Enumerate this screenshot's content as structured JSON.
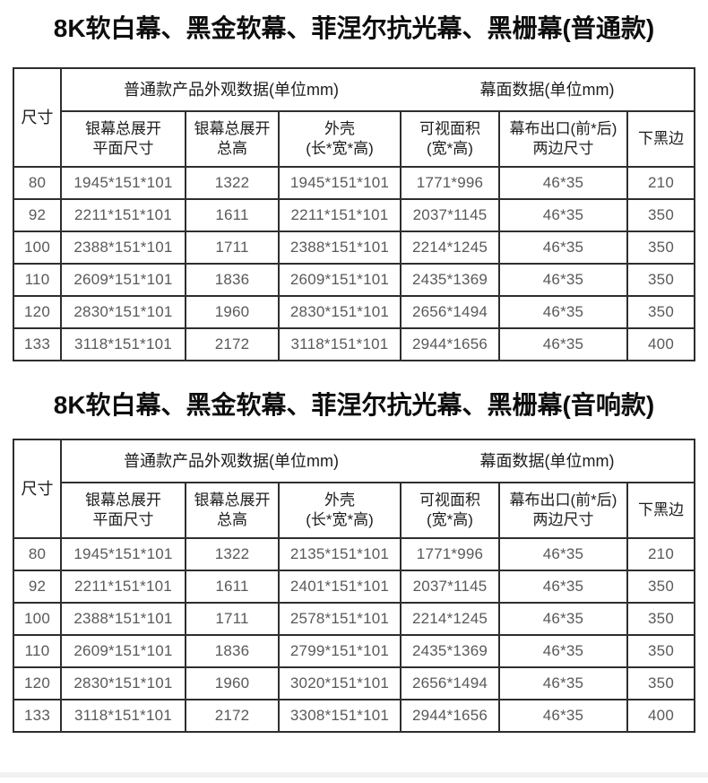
{
  "colors": {
    "page_bg": "#ffffff",
    "border": "#2e2e2e",
    "header_text": "#1c1c1c",
    "data_text": "#595959",
    "title_text": "#0d0d0d",
    "next_section_band": "#f1f1f1"
  },
  "tables": [
    {
      "title": "8K软白幕、黑金软幕、菲涅尔抗光幕、黑栅幕(普通款)",
      "header": {
        "size": "尺寸",
        "group_exterior": "普通款产品外观数据(单位mm)",
        "group_screen": "幕面数据(单位mm)",
        "sub": [
          "银幕总展开\n平面尺寸",
          "银幕总展开\n总高",
          "外壳\n(长*宽*高)",
          "可视面积\n(宽*高)",
          "幕布出口(前*后)\n两边尺寸",
          "下黑边"
        ]
      },
      "rows": [
        [
          "80",
          "1945*151*101",
          "1322",
          "1945*151*101",
          "1771*996",
          "46*35",
          "210"
        ],
        [
          "92",
          "2211*151*101",
          "1611",
          "2211*151*101",
          "2037*1145",
          "46*35",
          "350"
        ],
        [
          "100",
          "2388*151*101",
          "1711",
          "2388*151*101",
          "2214*1245",
          "46*35",
          "350"
        ],
        [
          "110",
          "2609*151*101",
          "1836",
          "2609*151*101",
          "2435*1369",
          "46*35",
          "350"
        ],
        [
          "120",
          "2830*151*101",
          "1960",
          "2830*151*101",
          "2656*1494",
          "46*35",
          "350"
        ],
        [
          "133",
          "3118*151*101",
          "2172",
          "3118*151*101",
          "2944*1656",
          "46*35",
          "400"
        ]
      ]
    },
    {
      "title": "8K软白幕、黑金软幕、菲涅尔抗光幕、黑栅幕(音响款)",
      "header": {
        "size": "尺寸",
        "group_exterior": "普通款产品外观数据(单位mm)",
        "group_screen": "幕面数据(单位mm)",
        "sub": [
          "银幕总展开\n平面尺寸",
          "银幕总展开\n总高",
          "外壳\n(长*宽*高)",
          "可视面积\n(宽*高)",
          "幕布出口(前*后)\n两边尺寸",
          "下黑边"
        ]
      },
      "rows": [
        [
          "80",
          "1945*151*101",
          "1322",
          "2135*151*101",
          "1771*996",
          "46*35",
          "210"
        ],
        [
          "92",
          "2211*151*101",
          "1611",
          "2401*151*101",
          "2037*1145",
          "46*35",
          "350"
        ],
        [
          "100",
          "2388*151*101",
          "1711",
          "2578*151*101",
          "2214*1245",
          "46*35",
          "350"
        ],
        [
          "110",
          "2609*151*101",
          "1836",
          "2799*151*101",
          "2435*1369",
          "46*35",
          "350"
        ],
        [
          "120",
          "2830*151*101",
          "1960",
          "3020*151*101",
          "2656*1494",
          "46*35",
          "350"
        ],
        [
          "133",
          "3118*151*101",
          "2172",
          "3308*151*101",
          "2944*1656",
          "46*35",
          "400"
        ]
      ]
    }
  ]
}
